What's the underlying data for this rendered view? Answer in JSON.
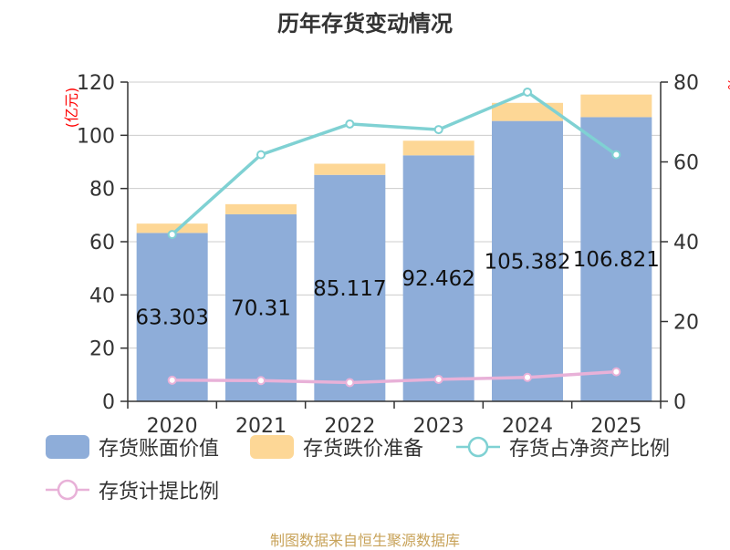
{
  "chart_data": {
    "type": "bar",
    "title": "历年存货变动情况",
    "left_axis_unit": "(亿元)",
    "right_axis_unit": "%",
    "categories": [
      "2020",
      "2021",
      "2022",
      "2023",
      "2024",
      "2025"
    ],
    "left_ylim": [
      0,
      120
    ],
    "left_ticks": [
      0,
      20,
      40,
      60,
      80,
      100,
      120
    ],
    "right_ylim": [
      0,
      80
    ],
    "right_ticks": [
      0,
      20,
      40,
      60,
      80
    ],
    "grid": true,
    "legend_position": "bottom",
    "series": [
      {
        "name": "存货账面价值",
        "kind": "bar",
        "axis": "left",
        "stack": "a",
        "color": "#8eadd9",
        "values": [
          63.303,
          70.31,
          85.117,
          92.462,
          105.382,
          106.821
        ],
        "labels": [
          "63.303",
          "70.31",
          "85.117",
          "92.462",
          "105.382",
          "106.821"
        ]
      },
      {
        "name": "存货跌价准备",
        "kind": "bar",
        "axis": "left",
        "stack": "a",
        "color": "#fdd796",
        "values": [
          3.5,
          3.8,
          4.2,
          5.5,
          6.8,
          8.5
        ]
      },
      {
        "name": "存货占净资产比例",
        "kind": "line",
        "axis": "right",
        "color": "#7fd1d3",
        "values": [
          41.8,
          61.8,
          69.5,
          68.1,
          77.5,
          61.8
        ]
      },
      {
        "name": "存货计提比例",
        "kind": "line",
        "axis": "right",
        "color": "#e8b1d8",
        "values": [
          5.3,
          5.2,
          4.7,
          5.5,
          6.0,
          7.4
        ]
      }
    ]
  },
  "source_text": "制图数据来自恒生聚源数据库",
  "colors": {
    "source_text": "#c8a35a",
    "axis_unit": "#ff0000"
  }
}
